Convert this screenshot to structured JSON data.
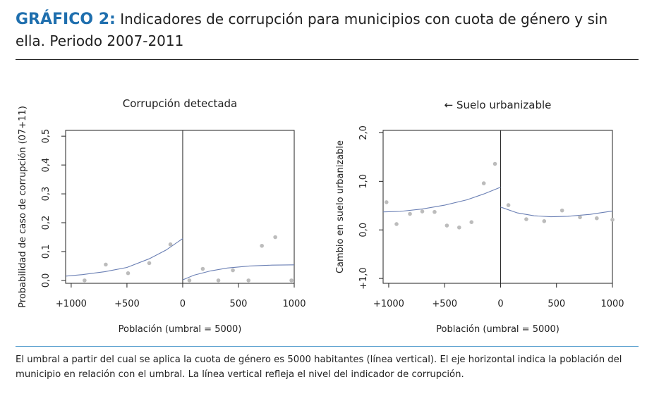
{
  "header": {
    "label": "GRÁFICO 2:",
    "title": "Indicadores de corrupción para municipios con cuota de género y sin ella. Periodo 2007-2011"
  },
  "footnote": "El umbral a partir del cual se aplica la cuota de género es 5000 habitantes (línea vertical). El eje horizontal indica la población del municipio en relación con el umbral. La línea vertical refleja el nivel del indicador de corrupción.",
  "colors": {
    "accent": "#1f6fae",
    "curve": "#6a7fb4",
    "points": "#bcbcbc",
    "rule": "#5aa0cf"
  },
  "chart_data": [
    {
      "type": "scatter",
      "title": "Corrupción detectada",
      "xlabel": "Población (umbral = 5000)",
      "ylabel": "Probabilidad de caso de corrupción (07+11)",
      "xlim": [
        -1050,
        1000
      ],
      "ylim": [
        -0.01,
        0.52
      ],
      "xticks": [
        -1000,
        -500,
        0,
        500,
        1000
      ],
      "xtick_labels": [
        "+1000",
        "+500",
        "0",
        "500",
        "1000"
      ],
      "yticks": [
        0.0,
        0.1,
        0.2,
        0.3,
        0.4,
        0.5
      ],
      "ytick_labels": [
        "0,0",
        "0,1",
        "0,2",
        "0,3",
        "0,4",
        "0,5"
      ],
      "threshold": 0,
      "points": [
        {
          "x": -880,
          "y": 0.0
        },
        {
          "x": -690,
          "y": 0.055
        },
        {
          "x": -490,
          "y": 0.025
        },
        {
          "x": -300,
          "y": 0.06
        },
        {
          "x": -110,
          "y": 0.125
        },
        {
          "x": 60,
          "y": 0.0
        },
        {
          "x": 180,
          "y": 0.04
        },
        {
          "x": 320,
          "y": 0.0
        },
        {
          "x": 450,
          "y": 0.035
        },
        {
          "x": 590,
          "y": 0.0
        },
        {
          "x": 710,
          "y": 0.12
        },
        {
          "x": 830,
          "y": 0.15
        },
        {
          "x": 975,
          "y": 0.0
        }
      ],
      "fit_left": [
        {
          "x": -1050,
          "y": 0.015
        },
        {
          "x": -900,
          "y": 0.02
        },
        {
          "x": -700,
          "y": 0.03
        },
        {
          "x": -500,
          "y": 0.045
        },
        {
          "x": -300,
          "y": 0.075
        },
        {
          "x": -150,
          "y": 0.105
        },
        {
          "x": 0,
          "y": 0.145
        }
      ],
      "fit_right": [
        {
          "x": 0,
          "y": 0.002
        },
        {
          "x": 100,
          "y": 0.018
        },
        {
          "x": 250,
          "y": 0.033
        },
        {
          "x": 400,
          "y": 0.043
        },
        {
          "x": 600,
          "y": 0.05
        },
        {
          "x": 800,
          "y": 0.053
        },
        {
          "x": 1000,
          "y": 0.054
        }
      ]
    },
    {
      "type": "scatter",
      "title": "← Suelo urbanizable",
      "xlabel": "Población (umbral = 5000)",
      "ylabel": "Cambio en suelo urbanizable",
      "xlim": [
        -1050,
        1000
      ],
      "ylim": [
        -1.1,
        2.05
      ],
      "xticks": [
        -1000,
        -500,
        0,
        500,
        1000
      ],
      "xtick_labels": [
        "+1000",
        "+500",
        "0",
        "500",
        "1000"
      ],
      "yticks": [
        -1.0,
        0.0,
        1.0,
        2.0
      ],
      "ytick_labels": [
        "+1,0",
        "0,0",
        "1,0",
        "2,0"
      ],
      "threshold": 0,
      "points": [
        {
          "x": -1020,
          "y": 0.57
        },
        {
          "x": -930,
          "y": 0.12
        },
        {
          "x": -810,
          "y": 0.33
        },
        {
          "x": -700,
          "y": 0.38
        },
        {
          "x": -590,
          "y": 0.37
        },
        {
          "x": -480,
          "y": 0.09
        },
        {
          "x": -370,
          "y": 0.05
        },
        {
          "x": -260,
          "y": 0.16
        },
        {
          "x": -150,
          "y": 0.96
        },
        {
          "x": -50,
          "y": 1.36
        },
        {
          "x": 70,
          "y": 0.51
        },
        {
          "x": 230,
          "y": 0.22
        },
        {
          "x": 390,
          "y": 0.18
        },
        {
          "x": 550,
          "y": 0.4
        },
        {
          "x": 710,
          "y": 0.26
        },
        {
          "x": 860,
          "y": 0.24
        },
        {
          "x": 1000,
          "y": 0.21
        }
      ],
      "fit_left": [
        {
          "x": -1050,
          "y": 0.37
        },
        {
          "x": -900,
          "y": 0.38
        },
        {
          "x": -700,
          "y": 0.43
        },
        {
          "x": -500,
          "y": 0.51
        },
        {
          "x": -300,
          "y": 0.62
        },
        {
          "x": -150,
          "y": 0.74
        },
        {
          "x": 0,
          "y": 0.88
        }
      ],
      "fit_right": [
        {
          "x": 0,
          "y": 0.47
        },
        {
          "x": 150,
          "y": 0.35
        },
        {
          "x": 300,
          "y": 0.29
        },
        {
          "x": 450,
          "y": 0.27
        },
        {
          "x": 600,
          "y": 0.28
        },
        {
          "x": 800,
          "y": 0.32
        },
        {
          "x": 1000,
          "y": 0.39
        }
      ]
    }
  ]
}
